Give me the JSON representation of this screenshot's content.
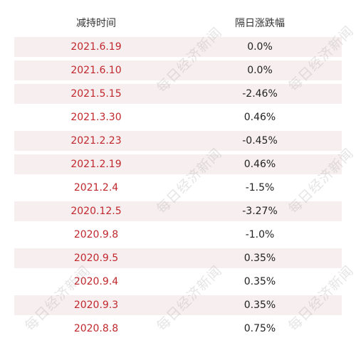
{
  "table": {
    "headers": [
      "减持时间",
      "隔日涨跌幅"
    ],
    "rows": [
      {
        "date": "2021.6.19",
        "change": "0.0%"
      },
      {
        "date": "2021.6.10",
        "change": "0.0%"
      },
      {
        "date": "2021.5.15",
        "change": "-2.46%"
      },
      {
        "date": "2021.3.30",
        "change": "0.46%"
      },
      {
        "date": "2021.2.23",
        "change": "-0.45%"
      },
      {
        "date": "2021.2.19",
        "change": "0.46%"
      },
      {
        "date": "2021.2.4",
        "change": "-1.5%"
      },
      {
        "date": "2020.12.5",
        "change": "-3.27%"
      },
      {
        "date": "2020.9.8",
        "change": "-1.0%"
      },
      {
        "date": "2020.9.5",
        "change": "0.35%"
      },
      {
        "date": "2020.9.4",
        "change": "0.35%"
      },
      {
        "date": "2020.9.3",
        "change": "0.35%"
      },
      {
        "date": "2020.8.8",
        "change": "0.75%"
      }
    ]
  },
  "watermark": "每日经济新闻",
  "colors": {
    "date_text": "#c0272d",
    "row_shade": "#f7efef",
    "value_text": "#222222"
  }
}
